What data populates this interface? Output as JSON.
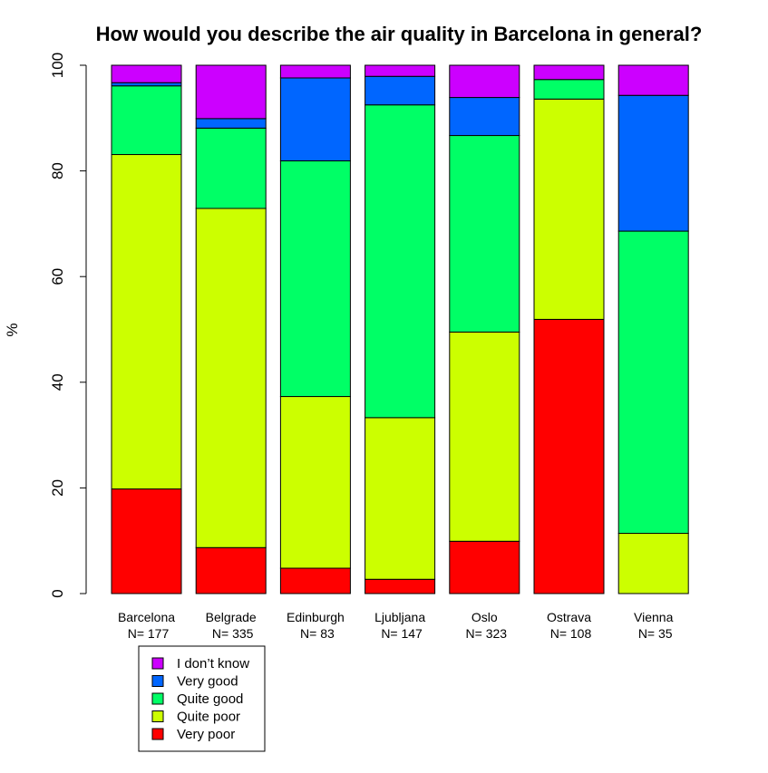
{
  "chart_data": {
    "type": "bar",
    "stacked": true,
    "title": "How would you describe the air quality in Barcelona in general?",
    "xlabel": "",
    "ylabel": "%",
    "ylim": [
      0,
      100
    ],
    "yticks": [
      "0",
      "20",
      "40",
      "60",
      "80",
      "100"
    ],
    "categories": [
      "Barcelona",
      "Belgrade",
      "Edinburgh",
      "Ljubljana",
      "Oslo",
      "Ostrava",
      "Vienna"
    ],
    "category_n": [
      "N= 177",
      "N= 335",
      "N= 83",
      "N= 147",
      "N= 323",
      "N= 108",
      "N= 35"
    ],
    "series": [
      {
        "name": "Very poor",
        "color": "#FF0000",
        "values": [
          19.8,
          8.7,
          4.8,
          2.7,
          9.9,
          51.9,
          0.0
        ]
      },
      {
        "name": "Quite poor",
        "color": "#CCFF00",
        "values": [
          63.3,
          64.2,
          32.5,
          30.6,
          39.6,
          41.7,
          11.4
        ]
      },
      {
        "name": "Quite good",
        "color": "#00FF66",
        "values": [
          13.0,
          15.2,
          44.6,
          59.2,
          37.2,
          3.7,
          57.2
        ]
      },
      {
        "name": "Very good",
        "color": "#0066FF",
        "values": [
          0.6,
          1.8,
          15.7,
          5.4,
          7.2,
          0.0,
          25.7
        ]
      },
      {
        "name": "I don’t know",
        "color": "#CC00FF",
        "values": [
          3.3,
          10.1,
          2.4,
          2.1,
          6.1,
          2.7,
          5.7
        ]
      }
    ],
    "legend_position": "bottom-left",
    "grid": false
  }
}
